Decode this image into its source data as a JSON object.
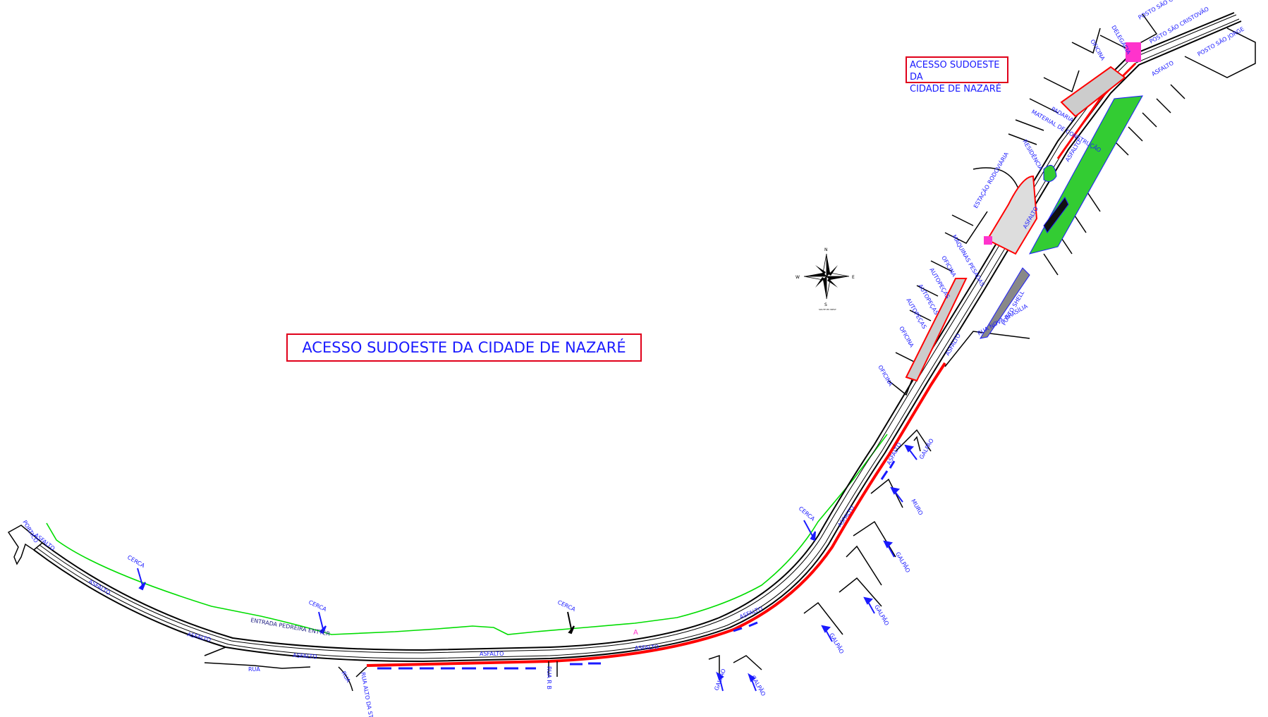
{
  "main_title": "ACESSO SUDOESTE DA CIDADE DE NAZARÉ",
  "corner_title_line1": "ACESSO SUDOESTE DA",
  "corner_title_line2": "CIDADE DE NAZARÉ",
  "compass": {
    "n": "N",
    "s": "S",
    "e": "E",
    "w": "W",
    "caption": "SOUTH BY WEST"
  },
  "colors": {
    "road": "#000000",
    "proposed_road": "#ff0000",
    "fence": "#00dd00",
    "labels": "#1a1aff",
    "title_border": "#e0001a"
  },
  "labels": {
    "asfalto": "ASFALTO",
    "cerca": "CERCA",
    "galpao": "GALPÃO",
    "muro": "MURO",
    "rua": "RUA",
    "rua_rb": "RUA R B",
    "rua_alto_santa_rita": "RUA ALTO DA STA RITA",
    "portico": "PORTICO",
    "entrada_pedreira": "ENTRADA PEDREIRA ENTTER",
    "oficina": "OFICINA",
    "autopecas": "AUTOPEÇAS",
    "maquinas_pesadas": "MÁQUINAS PESADAS",
    "estacao_rodoviaria": "ESTAÇÃO RODOVIÁRIA",
    "residencia": "RESIDÊNCIA",
    "material_construcao": "MATERIAL DE CONSTRUÇÃO",
    "padaria": "PADARIA",
    "delegacia": "DELEGACIA",
    "posto_sao_cristovao": "POSTO SÃO CRISTOVÃO",
    "posto_sao_jorge": "POSTO SÃO JORGE",
    "posto_shell": "POSTO SHELL",
    "rua_nova_brasilia": "RUA NOVA BRASÍLIA",
    "marker_a": "A"
  }
}
